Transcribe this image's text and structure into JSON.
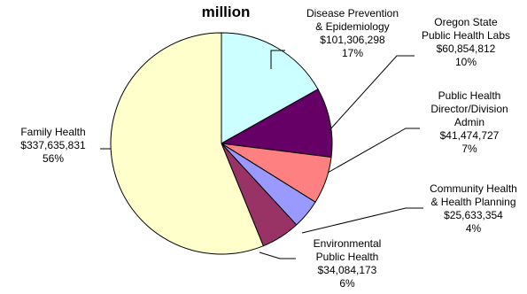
{
  "chart_data": {
    "type": "pie",
    "title": "million",
    "slices": [
      {
        "name": "Family Health",
        "value": 337635831,
        "value_label": "$337,635,831",
        "percent": "56%",
        "color": "#FFFFCC"
      },
      {
        "name_lines": [
          "Disease Prevention",
          "& Epidemiology"
        ],
        "name": "Disease Prevention & Epidemiology",
        "value": 101306298,
        "value_label": "$101,306,298",
        "percent": "17%",
        "color": "#CCFFFF"
      },
      {
        "name_lines": [
          "Oregon State",
          "Public Health Labs"
        ],
        "name": "Oregon State Public Health Labs",
        "value": 60854812,
        "value_label": "$60,854,812",
        "percent": "10%",
        "color": "#660066"
      },
      {
        "name_lines": [
          "Public Health",
          "Director/Division",
          "Admin"
        ],
        "name": "Public Health Director/Division Admin",
        "value": 41474727,
        "value_label": "$41,474,727",
        "percent": "7%",
        "color": "#FF8080"
      },
      {
        "name_lines": [
          "Community Health",
          "& Health Planning"
        ],
        "name": "Community Health & Health Planning",
        "value": 25633354,
        "value_label": "$25,633,354",
        "percent": "4%",
        "color": "#9999FF"
      },
      {
        "name_lines": [
          "Environmental",
          "Public Health"
        ],
        "name": "Environmental Public Health",
        "value": 34084173,
        "value_label": "$34,084,173",
        "percent": "6%",
        "color": "#993366"
      }
    ]
  }
}
